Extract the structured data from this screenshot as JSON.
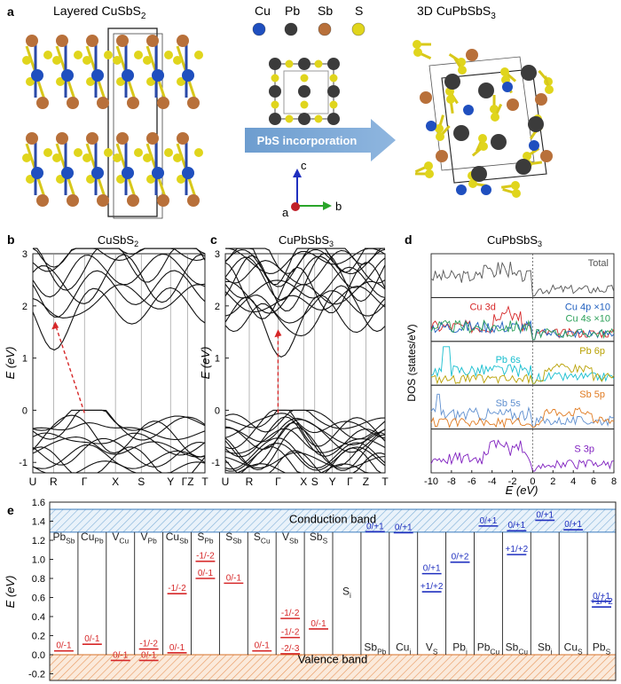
{
  "panel_a": {
    "label": "a",
    "left_title": "Layered CuSbS",
    "left_title_sub": "2",
    "right_title": "3D CuPbSbS",
    "right_title_sub": "3",
    "arrow_label": "PbS incorporation",
    "legend": [
      {
        "symbol": "Cu",
        "color": "#1f4fbf"
      },
      {
        "symbol": "Pb",
        "color": "#3b3b3b"
      },
      {
        "symbol": "Sb",
        "color": "#b8703a"
      },
      {
        "symbol": "S",
        "color": "#e0d51c"
      }
    ],
    "axes": {
      "c": "c",
      "a": "a",
      "b": "b"
    }
  },
  "panel_b": {
    "label": "b",
    "title": "CuSbS",
    "title_sub": "2",
    "ylabel": "E (eV)",
    "yticks": [
      "3",
      "2",
      "1",
      "0",
      "-1"
    ],
    "kpoints": [
      "U",
      "R",
      "Γ",
      "X",
      "S",
      "Y",
      "ΓZ",
      "T"
    ]
  },
  "panel_c": {
    "label": "c",
    "title": "CuPbSbS",
    "title_sub": "3",
    "ylabel": "E (eV)",
    "yticks": [
      "3",
      "2",
      "1",
      "0",
      "-1"
    ],
    "kpoints": [
      "U",
      "R",
      "Γ",
      "X",
      "S",
      "Y",
      "Γ",
      "Z",
      "T"
    ]
  },
  "panel_d": {
    "label": "d",
    "title": "CuPbSbS",
    "title_sub": "3",
    "ylabel": "DOS (states/eV)",
    "xlabel": "E (eV)",
    "xticks": [
      "-10",
      "-8",
      "-6",
      "-4",
      "-2",
      "0",
      "2",
      "4",
      "6",
      "8"
    ],
    "subpanels": [
      {
        "labels": [
          {
            "text": "Total",
            "color": "#555555"
          }
        ]
      },
      {
        "labels": [
          {
            "text": "Cu 3d",
            "color": "#d62728"
          },
          {
            "text": "Cu 4p ×10",
            "color": "#1f5fbf"
          },
          {
            "text": "Cu 4s ×10",
            "color": "#2ca05a"
          }
        ]
      },
      {
        "labels": [
          {
            "text": "Pb 6s",
            "color": "#17becf"
          },
          {
            "text": "Pb 6p",
            "color": "#b8a000"
          }
        ]
      },
      {
        "labels": [
          {
            "text": "Sb 5s",
            "color": "#5f8fcf"
          },
          {
            "text": "Sb 5p",
            "color": "#e07a20"
          }
        ]
      },
      {
        "labels": [
          {
            "text": "S 3p",
            "color": "#7f1fbf"
          }
        ]
      }
    ]
  },
  "panel_e": {
    "label": "e",
    "ylabel": "E (eV)",
    "conduction_label": "Conduction band",
    "valence_label": "Valence band",
    "yticks": [
      "1.6",
      "1.4",
      "1.2",
      "1.0",
      "0.8",
      "0.6",
      "0.4",
      "0.2",
      "0.0",
      "-0.2"
    ],
    "acceptors": [
      {
        "name": "Pb",
        "sub": "Sb"
      },
      {
        "name": "Cu",
        "sub": "Pb"
      },
      {
        "name": "V",
        "sub": "Cu"
      },
      {
        "name": "V",
        "sub": "Pb"
      },
      {
        "name": "Cu",
        "sub": "Sb"
      },
      {
        "name": "S",
        "sub": "Pb"
      },
      {
        "name": "S",
        "sub": "Sb"
      },
      {
        "name": "S",
        "sub": "Cu"
      },
      {
        "name": "V",
        "sub": "Sb"
      },
      {
        "name": "Sb",
        "sub": "S"
      }
    ],
    "neutral": {
      "name": "S",
      "sub": "i"
    },
    "donors": [
      {
        "name": "Sb",
        "sub": "Pb"
      },
      {
        "name": "Cu",
        "sub": "i"
      },
      {
        "name": "V",
        "sub": "S"
      },
      {
        "name": "Pb",
        "sub": "i"
      },
      {
        "name": "Pb",
        "sub": "Cu"
      },
      {
        "name": "Sb",
        "sub": "Cu"
      },
      {
        "name": "Sb",
        "sub": "i"
      },
      {
        "name": "Cu",
        "sub": "S"
      },
      {
        "name": "Pb",
        "sub": "S"
      }
    ],
    "levels": [
      {
        "col": 0,
        "e": 0.04,
        "t": "0/-1",
        "c": "#d62728"
      },
      {
        "col": 1,
        "e": 0.11,
        "t": "0/-1",
        "c": "#d62728"
      },
      {
        "col": 2,
        "e": -0.06,
        "t": "0/-1",
        "c": "#d62728"
      },
      {
        "col": 3,
        "e": -0.06,
        "t": "0/-1",
        "c": "#d62728"
      },
      {
        "col": 3,
        "e": 0.06,
        "t": "-1/-2",
        "c": "#d62728"
      },
      {
        "col": 4,
        "e": 0.02,
        "t": "0/-1",
        "c": "#d62728"
      },
      {
        "col": 4,
        "e": 0.64,
        "t": "-1/-2",
        "c": "#d62728"
      },
      {
        "col": 5,
        "e": 0.8,
        "t": "0/-1",
        "c": "#d62728"
      },
      {
        "col": 5,
        "e": 0.98,
        "t": "-1/-2",
        "c": "#d62728"
      },
      {
        "col": 6,
        "e": 0.75,
        "t": "0/-1",
        "c": "#d62728"
      },
      {
        "col": 7,
        "e": 0.04,
        "t": "0/-1",
        "c": "#d62728"
      },
      {
        "col": 8,
        "e": 0.01,
        "t": "-2/-3",
        "c": "#d62728"
      },
      {
        "col": 8,
        "e": 0.18,
        "t": "-1/-2",
        "c": "#d62728"
      },
      {
        "col": 8,
        "e": 0.38,
        "t": "-1/-2",
        "c": "#d62728"
      },
      {
        "col": 9,
        "e": 0.27,
        "t": "0/-1",
        "c": "#d62728"
      },
      {
        "col": 11,
        "e": 1.29,
        "t": "0/+1",
        "c": "#1f2fbf"
      },
      {
        "col": 12,
        "e": 1.28,
        "t": "0/+1",
        "c": "#1f2fbf"
      },
      {
        "col": 13,
        "e": 0.85,
        "t": "0/+1",
        "c": "#1f2fbf"
      },
      {
        "col": 13,
        "e": 0.66,
        "t": "+1/+2",
        "c": "#1f2fbf"
      },
      {
        "col": 14,
        "e": 0.97,
        "t": "0/+2",
        "c": "#1f2fbf"
      },
      {
        "col": 15,
        "e": 1.35,
        "t": "0/+1",
        "c": "#1f2fbf"
      },
      {
        "col": 16,
        "e": 1.3,
        "t": "0/+1",
        "c": "#1f2fbf"
      },
      {
        "col": 16,
        "e": 1.05,
        "t": "+1/+2",
        "c": "#1f2fbf"
      },
      {
        "col": 17,
        "e": 1.41,
        "t": "0/+1",
        "c": "#1f2fbf"
      },
      {
        "col": 18,
        "e": 1.31,
        "t": "0/+1",
        "c": "#1f2fbf"
      },
      {
        "col": 19,
        "e": 0.56,
        "t": "0/+1",
        "c": "#1f2fbf"
      },
      {
        "col": 19,
        "e": 0.5,
        "t": "+1/+2",
        "c": "#1f2fbf"
      }
    ]
  }
}
